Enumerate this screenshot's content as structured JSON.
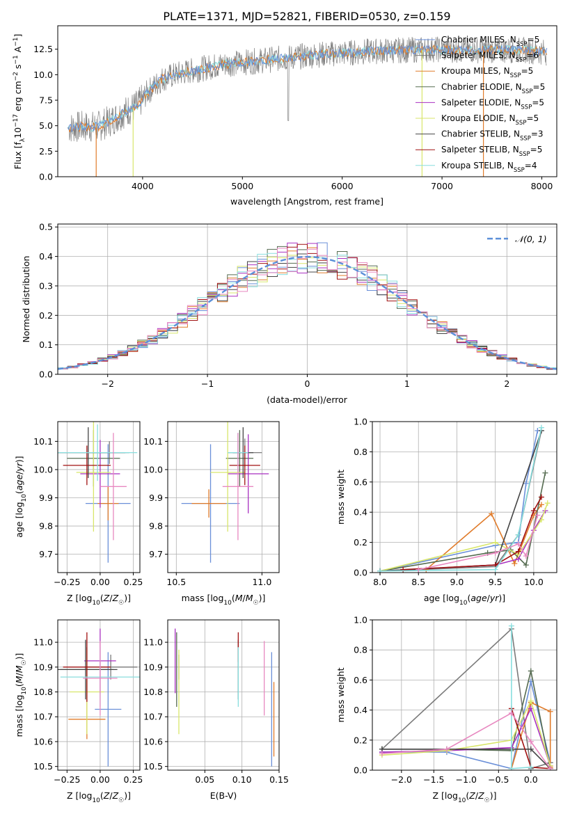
{
  "title": "PLATE=1371, MJD=52821, FIBERID=0530, z=0.159",
  "colors": [
    "#6a8fd8",
    "#7a7a7a",
    "#e07b2a",
    "#556b50",
    "#a82fc0",
    "#d8e66a",
    "#444444",
    "#a01010",
    "#88dede",
    "#e888c0"
  ],
  "chart_data": [
    {
      "type": "line",
      "title": "PLATE=1371, MJD=52821, FIBERID=0530, z=0.159",
      "xlabel": "wavelength [Angstrom, rest frame]",
      "ylabel": "Flux [f_λ 10^-17 erg cm^-2 s^-1 A^-1]",
      "xlim": [
        3150,
        8150
      ],
      "ylim": [
        0,
        14.8
      ],
      "xticks": [
        "4000",
        "5000",
        "6000",
        "7000",
        "8000"
      ],
      "yticks": [
        "0.0",
        "2.5",
        "5.0",
        "7.5",
        "10.0",
        "12.5"
      ],
      "legend": "top-right",
      "series": [
        {
          "name": "Chabrier MILES, N_SSP=5"
        },
        {
          "name": "Salpeter MILES, N_SSP=6"
        },
        {
          "name": "Kroupa MILES, N_SSP=5"
        },
        {
          "name": "Chabrier ELODIE, N_SSP=5"
        },
        {
          "name": "Salpeter ELODIE, N_SSP=5"
        },
        {
          "name": "Kroupa ELODIE, N_SSP=5"
        },
        {
          "name": "Chabrier STELIB, N_SSP=3"
        },
        {
          "name": "Salpeter STELIB, N_SSP=5"
        },
        {
          "name": "Kroupa STELIB, N_SSP=4"
        }
      ],
      "continuum": {
        "x": [
          3250,
          3400,
          3550,
          3700,
          3850,
          3950,
          4050,
          4200,
          4400,
          4600,
          4800,
          5000,
          5200,
          5400,
          5600,
          5800,
          6000,
          6300,
          6600,
          6900,
          7200,
          7500,
          7800,
          8050
        ],
        "y": [
          4.8,
          4.9,
          4.9,
          5.6,
          6.5,
          7.0,
          8.3,
          9.6,
          10.2,
          10.6,
          11.0,
          11.2,
          11.4,
          11.6,
          11.8,
          12.0,
          12.1,
          12.3,
          12.4,
          12.5,
          12.4,
          12.4,
          12.4,
          12.2
        ]
      }
    },
    {
      "type": "histogram",
      "xlabel": "(data-model)/error",
      "ylabel": "Normed distribution",
      "xlim": [
        -2.5,
        2.5
      ],
      "ylim": [
        0,
        0.51
      ],
      "xticks": [
        "−2",
        "−1",
        "0",
        "1",
        "2"
      ],
      "yticks": [
        "0.0",
        "0.1",
        "0.2",
        "0.3",
        "0.4",
        "0.5"
      ],
      "legend_label": "𝒩(0, 1)",
      "legend": "top-right",
      "bin_width": 0.1
    },
    {
      "type": "scatter",
      "xlabel": "Z [log10(Z/Z☉)]",
      "ylabel": "age [log10(age/yr)]",
      "xlim": [
        -0.32,
        0.3
      ],
      "ylim": [
        9.635,
        10.17
      ],
      "xticks": [
        "−0.25",
        "0.00",
        "0.25"
      ],
      "yticks": [
        "9.7",
        "9.8",
        "9.9",
        "10.0",
        "10.1"
      ],
      "points": [
        {
          "x": 0.06,
          "y": 9.88,
          "xerr": 0.17,
          "yerr": 0.21
        },
        {
          "x": 0.07,
          "y": 10.06,
          "xerr": 0.15,
          "yerr": 0.04
        },
        {
          "x": 0.06,
          "y": 9.88,
          "xerr": 0.08,
          "yerr": 0.06
        },
        {
          "x": -0.05,
          "y": 10.04,
          "xerr": 0.2,
          "yerr": 0.1
        },
        {
          "x": 0.0,
          "y": 9.985,
          "xerr": 0.15,
          "yerr": 0.12
        },
        {
          "x": -0.05,
          "y": 9.99,
          "xerr": 0.13,
          "yerr": 0.21
        },
        {
          "x": -0.09,
          "y": 10.06,
          "xerr": 0.28,
          "yerr": 0.09
        },
        {
          "x": -0.1,
          "y": 10.015,
          "xerr": 0.18,
          "yerr": 0.07
        },
        {
          "x": -0.02,
          "y": 10.06,
          "xerr": 0.3,
          "yerr": 0.1
        },
        {
          "x": 0.1,
          "y": 9.94,
          "xerr": 0.1,
          "yerr": 0.19
        }
      ]
    },
    {
      "type": "scatter",
      "xlabel": "mass [log10(M/M☉)]",
      "xlim": [
        10.45,
        11.1
      ],
      "ylim": [
        9.635,
        10.17
      ],
      "xticks": [
        "10.5",
        "11.0"
      ],
      "yticks": [
        "9.7",
        "9.8",
        "9.9",
        "10.0",
        "10.1"
      ],
      "points": [
        {
          "x": 10.7,
          "y": 9.88,
          "xerr": 0.17,
          "yerr": 0.21
        },
        {
          "x": 10.9,
          "y": 10.06,
          "xerr": 0.1,
          "yerr": 0.05
        },
        {
          "x": 10.69,
          "y": 9.88,
          "xerr": 0.1,
          "yerr": 0.05
        },
        {
          "x": 10.87,
          "y": 10.04,
          "xerr": 0.08,
          "yerr": 0.1
        },
        {
          "x": 10.92,
          "y": 9.985,
          "xerr": 0.12,
          "yerr": 0.14
        },
        {
          "x": 10.8,
          "y": 9.99,
          "xerr": 0.1,
          "yerr": 0.21
        },
        {
          "x": 10.89,
          "y": 10.06,
          "xerr": 0.06,
          "yerr": 0.09
        },
        {
          "x": 10.9,
          "y": 10.015,
          "xerr": 0.09,
          "yerr": 0.07
        },
        {
          "x": 10.86,
          "y": 10.06,
          "xerr": 0.06,
          "yerr": 0.07
        },
        {
          "x": 10.86,
          "y": 9.94,
          "xerr": 0.09,
          "yerr": 0.19
        }
      ]
    },
    {
      "type": "line",
      "xlabel": "age  [log10(age/yr)]",
      "ylabel": "mass weight",
      "xlim": [
        7.9,
        10.3
      ],
      "ylim": [
        0,
        1.0
      ],
      "xticks": [
        "8.0",
        "8.5",
        "9.0",
        "9.5",
        "10.0"
      ],
      "yticks": [
        "0.0",
        "0.2",
        "0.4",
        "0.6",
        "0.8",
        "1.0"
      ],
      "series": [
        {
          "x": [
            8.0,
            9.5,
            9.8,
            9.9,
            10.05
          ],
          "y": [
            0.01,
            0.18,
            0.2,
            0.59,
            0.94
          ]
        },
        {
          "x": [
            8.0,
            9.5,
            9.8,
            10.1
          ],
          "y": [
            0.01,
            0.04,
            0.25,
            0.94
          ]
        },
        {
          "x": [
            8.6,
            9.45,
            9.75,
            10.0,
            10.1
          ],
          "y": [
            0.02,
            0.39,
            0.06,
            0.38,
            0.45
          ]
        },
        {
          "x": [
            8.0,
            9.4,
            9.7,
            9.9,
            10.15
          ],
          "y": [
            0.01,
            0.13,
            0.15,
            0.05,
            0.66
          ]
        },
        {
          "x": [
            8.0,
            9.5,
            9.8,
            10.0,
            10.15
          ],
          "y": [
            0.01,
            0.05,
            0.09,
            0.28,
            0.41
          ]
        },
        {
          "x": [
            8.0,
            9.5,
            9.8,
            10.1,
            10.18
          ],
          "y": [
            0.01,
            0.2,
            0.12,
            0.35,
            0.46
          ]
        },
        {
          "x": [
            8.0,
            9.5,
            10.1
          ],
          "y": [
            0.01,
            0.05,
            0.94
          ]
        },
        {
          "x": [
            8.3,
            9.5,
            9.8,
            10.0,
            10.1
          ],
          "y": [
            0.02,
            0.05,
            0.14,
            0.41,
            0.5
          ]
        },
        {
          "x": [
            8.0,
            9.5,
            9.8,
            10.1
          ],
          "y": [
            0.01,
            0.02,
            0.25,
            0.96
          ]
        },
        {
          "x": [
            8.5,
            9.5,
            9.8,
            9.9,
            10.05
          ],
          "y": [
            0.02,
            0.13,
            0.19,
            0.11,
            0.38
          ]
        }
      ]
    },
    {
      "type": "scatter",
      "xlabel": "Z [log10(Z/Z☉)]",
      "ylabel": "mass [log10(M/M☉)]",
      "xlim": [
        -0.32,
        0.3
      ],
      "ylim": [
        10.485,
        11.09
      ],
      "xticks": [
        "−0.25",
        "0.00",
        "0.25"
      ],
      "yticks": [
        "10.5",
        "10.6",
        "10.7",
        "10.8",
        "10.9",
        "11.0"
      ],
      "points": [
        {
          "x": 0.06,
          "y": 10.73,
          "xerr": 0.1,
          "yerr": 0.23
        },
        {
          "x": 0.08,
          "y": 10.9,
          "xerr": 0.2,
          "yerr": 0.05
        },
        {
          "x": -0.1,
          "y": 10.69,
          "xerr": 0.14,
          "yerr": 0.08
        },
        {
          "x": -0.1,
          "y": 10.89,
          "xerr": 0.2,
          "yerr": 0.09
        },
        {
          "x": 0.0,
          "y": 10.925,
          "xerr": 0.12,
          "yerr": 0.13
        },
        {
          "x": -0.1,
          "y": 10.8,
          "xerr": 0.13,
          "yerr": 0.17
        },
        {
          "x": -0.11,
          "y": 10.89,
          "xerr": 0.24,
          "yerr": 0.12
        },
        {
          "x": -0.1,
          "y": 10.9,
          "xerr": 0.18,
          "yerr": 0.14
        },
        {
          "x": 0.0,
          "y": 10.86,
          "xerr": 0.3,
          "yerr": 0.12
        },
        {
          "x": 0.0,
          "y": 10.855,
          "xerr": 0.13,
          "yerr": 0.15
        }
      ]
    },
    {
      "type": "scatter",
      "xlabel": "E(B-V)",
      "xlim": [
        0.0,
        0.15
      ],
      "ylim": [
        10.485,
        11.09
      ],
      "xticks": [
        "0.05",
        "0.10",
        "0.15"
      ],
      "yticks": [
        "10.5",
        "10.6",
        "10.7",
        "10.8",
        "10.9",
        "11.0"
      ],
      "points": [
        {
          "x": 0.14,
          "y": 10.73,
          "yerr": 0.23
        },
        {
          "x": 0.015,
          "y": 10.9,
          "yerr": 0.05
        },
        {
          "x": 0.143,
          "y": 10.69,
          "yerr": 0.15
        },
        {
          "x": 0.012,
          "y": 10.89,
          "yerr": 0.15
        },
        {
          "x": 0.01,
          "y": 10.925,
          "yerr": 0.13
        },
        {
          "x": 0.015,
          "y": 10.8,
          "yerr": 0.17
        },
        {
          "x": 0.095,
          "y": 10.89,
          "yerr": 0.12
        },
        {
          "x": 0.095,
          "y": 10.98,
          "yerr": 0.06
        },
        {
          "x": 0.095,
          "y": 10.86,
          "yerr": 0.12
        },
        {
          "x": 0.13,
          "y": 10.855,
          "yerr": 0.15
        }
      ]
    },
    {
      "type": "line",
      "xlabel": "Z [log10(Z/Z☉)]",
      "ylabel": "mass weight",
      "xlim": [
        -2.45,
        0.4
      ],
      "ylim": [
        0,
        1.0
      ],
      "xticks": [
        "−2.0",
        "−1.5",
        "−1.0",
        "−0.5",
        "0.0"
      ],
      "yticks": [
        "0.0",
        "0.2",
        "0.4",
        "0.6",
        "0.8",
        "1.0"
      ],
      "series": [
        {
          "x": [
            -2.3,
            -1.3,
            -0.3,
            0.0,
            0.3
          ],
          "y": [
            0.12,
            0.12,
            0.01,
            0.59,
            0.05
          ]
        },
        {
          "x": [
            -2.3,
            -0.3,
            0.0,
            0.3
          ],
          "y": [
            0.14,
            0.94,
            0.01,
            0.05
          ]
        },
        {
          "x": [
            -0.3,
            0.0,
            0.3,
            0.3
          ],
          "y": [
            0.01,
            0.45,
            0.39,
            0.02
          ]
        },
        {
          "x": [
            -2.3,
            -1.3,
            -0.3,
            0.0,
            0.3
          ],
          "y": [
            0.14,
            0.14,
            0.13,
            0.66,
            0.01
          ]
        },
        {
          "x": [
            -2.3,
            -1.3,
            -0.3,
            0.0,
            0.3
          ],
          "y": [
            0.12,
            0.13,
            0.15,
            0.41,
            0.03
          ]
        },
        {
          "x": [
            -2.3,
            -1.3,
            -0.3,
            0.0,
            0.3
          ],
          "y": [
            0.1,
            0.13,
            0.2,
            0.46,
            0.03
          ]
        },
        {
          "x": [
            -2.3,
            0.0,
            0.3
          ],
          "y": [
            0.14,
            0.14,
            0.01
          ]
        },
        {
          "x": [
            -0.3,
            0.0,
            0.3
          ],
          "y": [
            0.41,
            0.02,
            0.01
          ]
        },
        {
          "x": [
            -0.3,
            -0.3,
            0.0
          ],
          "y": [
            0.96,
            0.01,
            0.02
          ]
        },
        {
          "x": [
            -2.3,
            -1.3,
            -0.3,
            0.0,
            0.3
          ],
          "y": [
            0.11,
            0.14,
            0.38,
            0.19,
            0.01
          ]
        }
      ]
    }
  ]
}
